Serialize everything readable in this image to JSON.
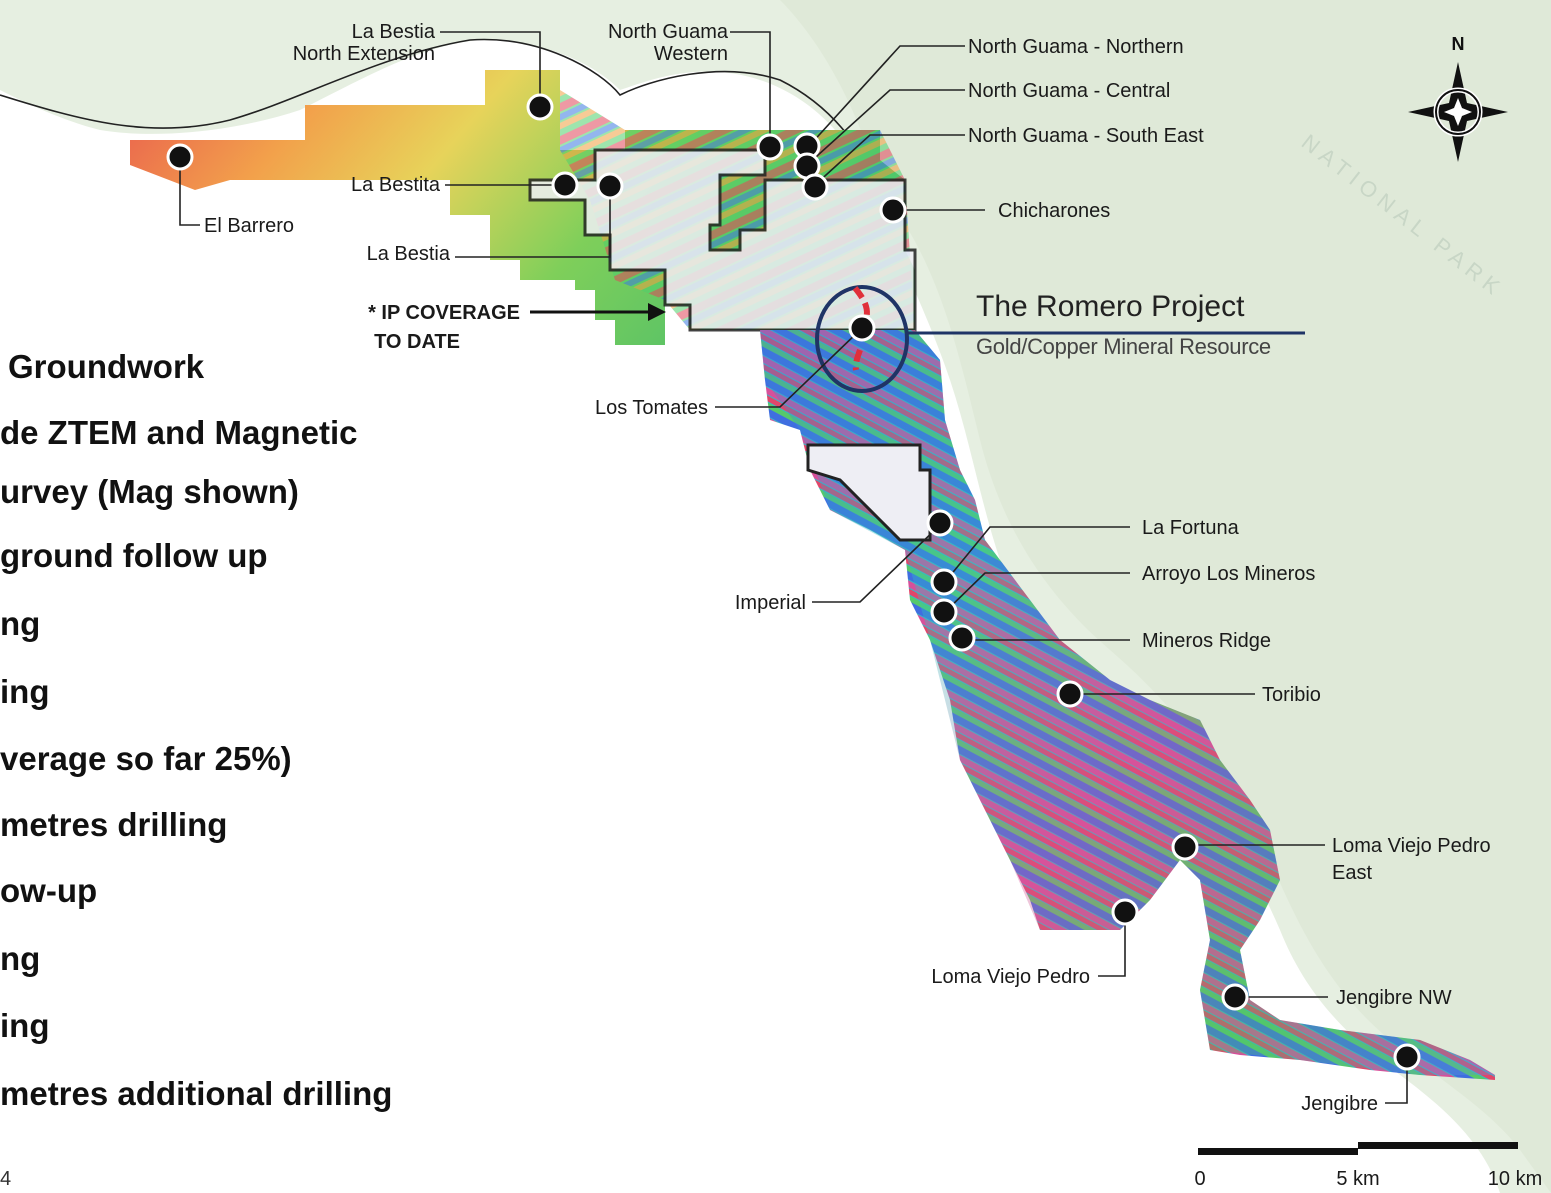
{
  "project": {
    "title": "The Romero Project",
    "subtitle": "Gold/Copper Mineral Resource"
  },
  "ip_coverage_label": [
    "* IP COVERAGE",
    "TO DATE"
  ],
  "park_watermark": "NATIONAL PARK",
  "compass": {
    "north_label": "N"
  },
  "scale_bar": {
    "labels": [
      "0",
      "5 km",
      "10 km"
    ]
  },
  "bullets": [
    "Groundwork",
    "de ZTEM and Magnetic",
    "urvey (Mag shown)",
    "ground follow up",
    "ng",
    "ing",
    "verage so far 25%)",
    "metres drilling",
    "ow-up",
    "ng",
    "ing",
    "metres additional drilling"
  ],
  "page_number": "4",
  "targets": [
    {
      "id": "la-bestia-north-extension",
      "label": [
        "La Bestia",
        "North Extension"
      ]
    },
    {
      "id": "north-guama-western",
      "label": [
        "North Guama",
        "Western"
      ]
    },
    {
      "id": "north-guama-northern",
      "label": [
        "North Guama - Northern"
      ]
    },
    {
      "id": "north-guama-central",
      "label": [
        "North Guama - Central"
      ]
    },
    {
      "id": "north-guama-south-east",
      "label": [
        "North Guama - South East"
      ]
    },
    {
      "id": "el-barrero",
      "label": [
        "El Barrero"
      ]
    },
    {
      "id": "la-bestita",
      "label": [
        "La Bestita"
      ]
    },
    {
      "id": "la-bestia",
      "label": [
        "La Bestia"
      ]
    },
    {
      "id": "chicharones",
      "label": [
        "Chicharones"
      ]
    },
    {
      "id": "los-tomates",
      "label": [
        "Los Tomates"
      ]
    },
    {
      "id": "imperial",
      "label": [
        "Imperial"
      ]
    },
    {
      "id": "la-fortuna",
      "label": [
        "La Fortuna"
      ]
    },
    {
      "id": "arroyo-los-mineros",
      "label": [
        "Arroyo Los Mineros"
      ]
    },
    {
      "id": "mineros-ridge",
      "label": [
        "Mineros Ridge"
      ]
    },
    {
      "id": "toribio",
      "label": [
        "Toribio"
      ]
    },
    {
      "id": "loma-viejo-pedro-east",
      "label": [
        "Loma Viejo Pedro",
        "East"
      ]
    },
    {
      "id": "loma-viejo-pedro",
      "label": [
        "Loma Viejo Pedro"
      ]
    },
    {
      "id": "jengibre-nw",
      "label": [
        "Jengibre NW"
      ]
    },
    {
      "id": "jengibre",
      "label": [
        "Jengibre"
      ]
    }
  ]
}
